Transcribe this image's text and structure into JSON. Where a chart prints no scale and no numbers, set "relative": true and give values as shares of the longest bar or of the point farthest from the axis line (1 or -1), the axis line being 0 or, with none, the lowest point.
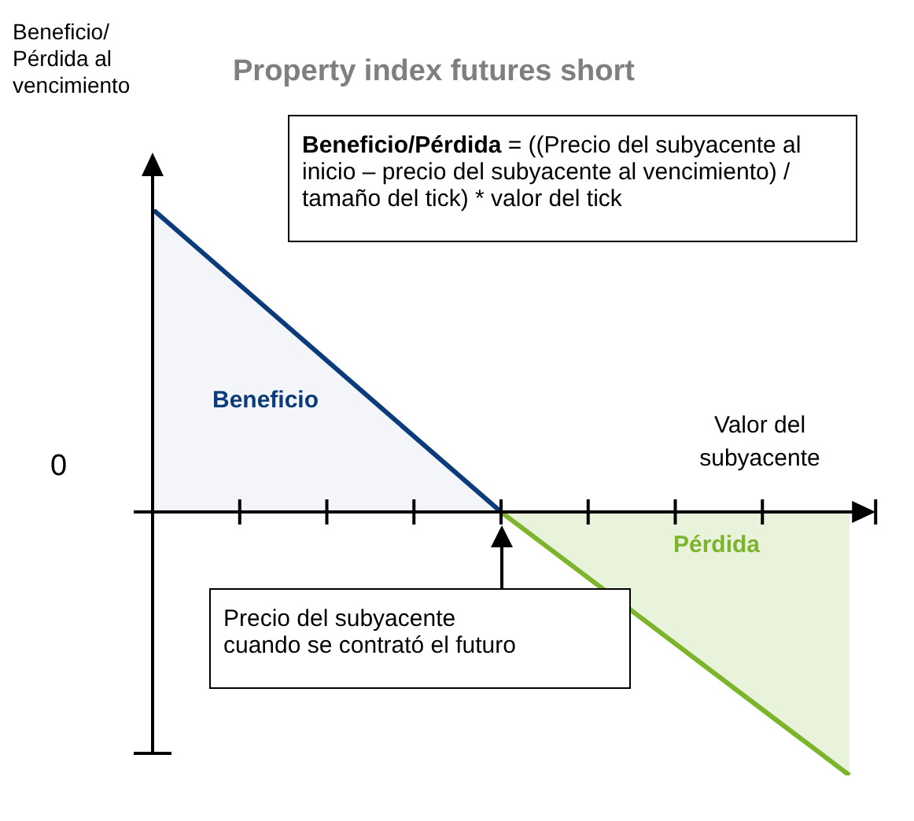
{
  "chart_data": {
    "type": "area",
    "title": "Property index futures short",
    "xlabel": "Valor del subyacente",
    "relative": true,
    "categories": [
      null,
      null,
      null
    ],
    "series": [
      {
        "name": "Beneficio",
        "color": "#0b3b7a",
        "values": [
          1,
          0,
          null
        ]
      },
      {
        "name": "Pérdida",
        "color": "#7cb42c",
        "values": [
          null,
          0,
          -0.87
        ]
      }
    ],
    "annotations": [
      "Beneficio/Pérdida = ((Precio del subyacente al inicio – precio del subyacente al vencimiento) / tamaño del tick) * valor del tick",
      "Precio del subyacente cuando se contrató el futuro",
      "0",
      "Beneficio/\nPérdida al\nvencimiento"
    ]
  }
}
